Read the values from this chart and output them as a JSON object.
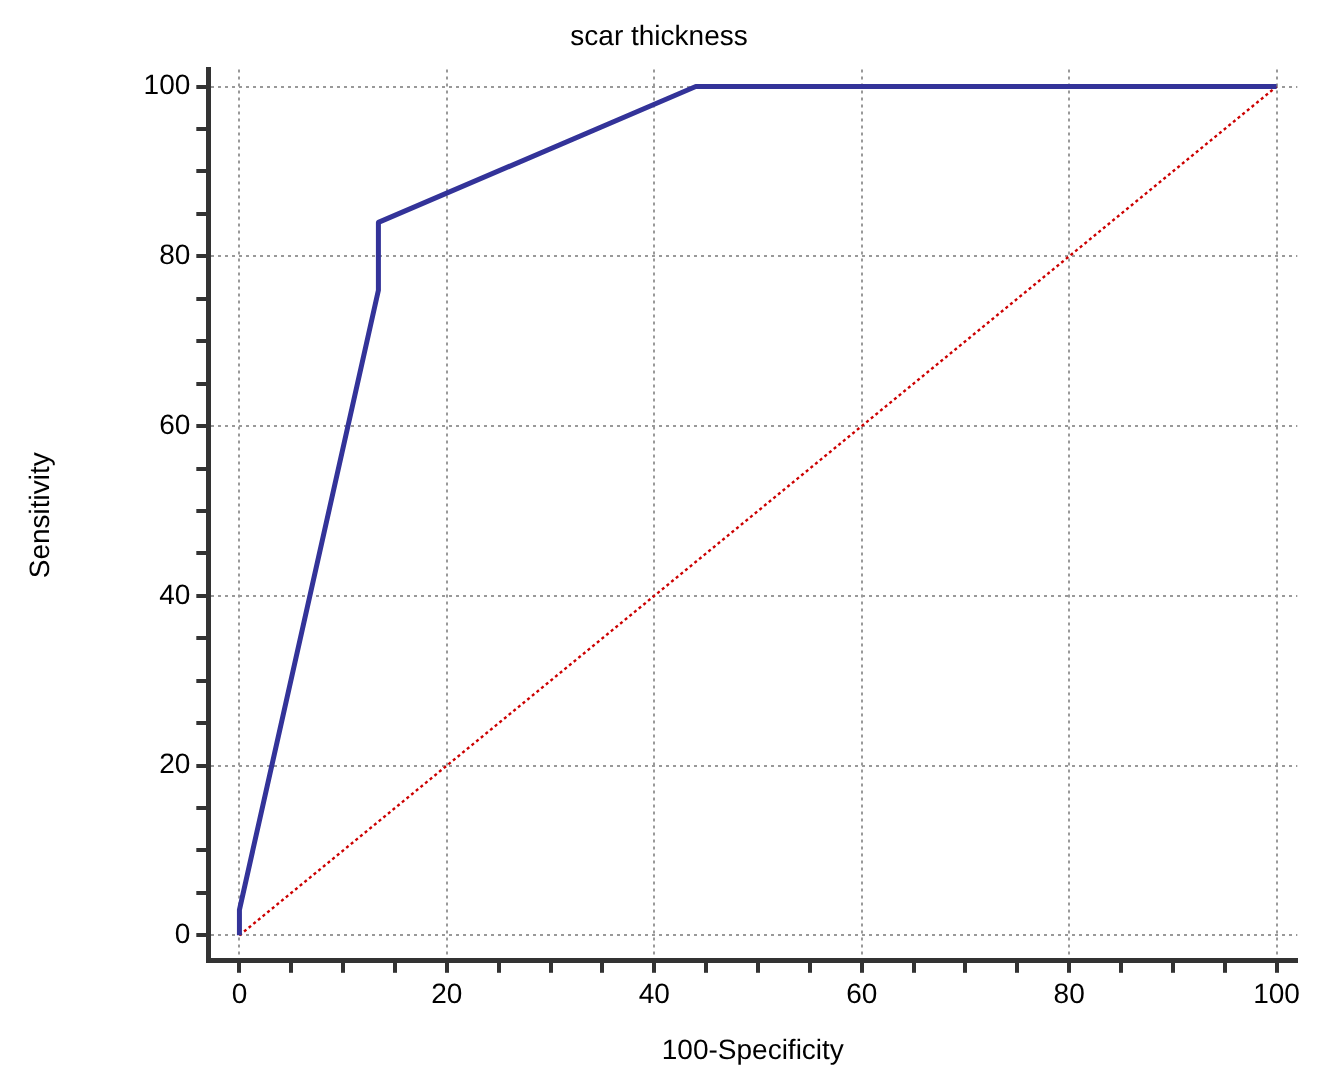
{
  "chart_data": {
    "type": "line",
    "title": "scar thickness",
    "xlabel": "100-Specificity",
    "ylabel": "Sensitivity",
    "xlim": [
      -3,
      102
    ],
    "ylim": [
      -3,
      102
    ],
    "xticks": [
      0,
      {
        "value": 5,
        "label": null
      },
      {
        "value": 10,
        "label": null
      },
      {
        "value": 15,
        "label": null
      },
      20,
      {
        "value": 25,
        "label": null
      },
      {
        "value": 30,
        "label": null
      },
      {
        "value": 35,
        "label": null
      },
      40,
      {
        "value": 45,
        "label": null
      },
      {
        "value": 50,
        "label": null
      },
      {
        "value": 55,
        "label": null
      },
      60,
      {
        "value": 65,
        "label": null
      },
      {
        "value": 70,
        "label": null
      },
      {
        "value": 75,
        "label": null
      },
      80,
      {
        "value": 85,
        "label": null
      },
      {
        "value": 90,
        "label": null
      },
      {
        "value": 95,
        "label": null
      },
      100
    ],
    "yticks": [
      0,
      {
        "value": 5,
        "label": null
      },
      {
        "value": 10,
        "label": null
      },
      {
        "value": 15,
        "label": null
      },
      20,
      {
        "value": 25,
        "label": null
      },
      {
        "value": 30,
        "label": null
      },
      {
        "value": 35,
        "label": null
      },
      40,
      {
        "value": 45,
        "label": null
      },
      {
        "value": 50,
        "label": null
      },
      {
        "value": 55,
        "label": null
      },
      60,
      {
        "value": 65,
        "label": null
      },
      {
        "value": 70,
        "label": null
      },
      {
        "value": 75,
        "label": null
      },
      80,
      {
        "value": 85,
        "label": null
      },
      {
        "value": 90,
        "label": null
      },
      {
        "value": 95,
        "label": null
      },
      100
    ],
    "grid": true,
    "marker": "none",
    "series": [
      {
        "color": "#333399",
        "x": [
          0,
          0,
          13.4,
          13.4,
          44,
          100
        ],
        "values": [
          0,
          3,
          76,
          84,
          100,
          100
        ],
        "line_style": "solid"
      },
      {
        "color": "#cc0000",
        "x": [
          0,
          100
        ],
        "values": [
          0,
          100
        ],
        "line_style": "dotted"
      }
    ]
  }
}
